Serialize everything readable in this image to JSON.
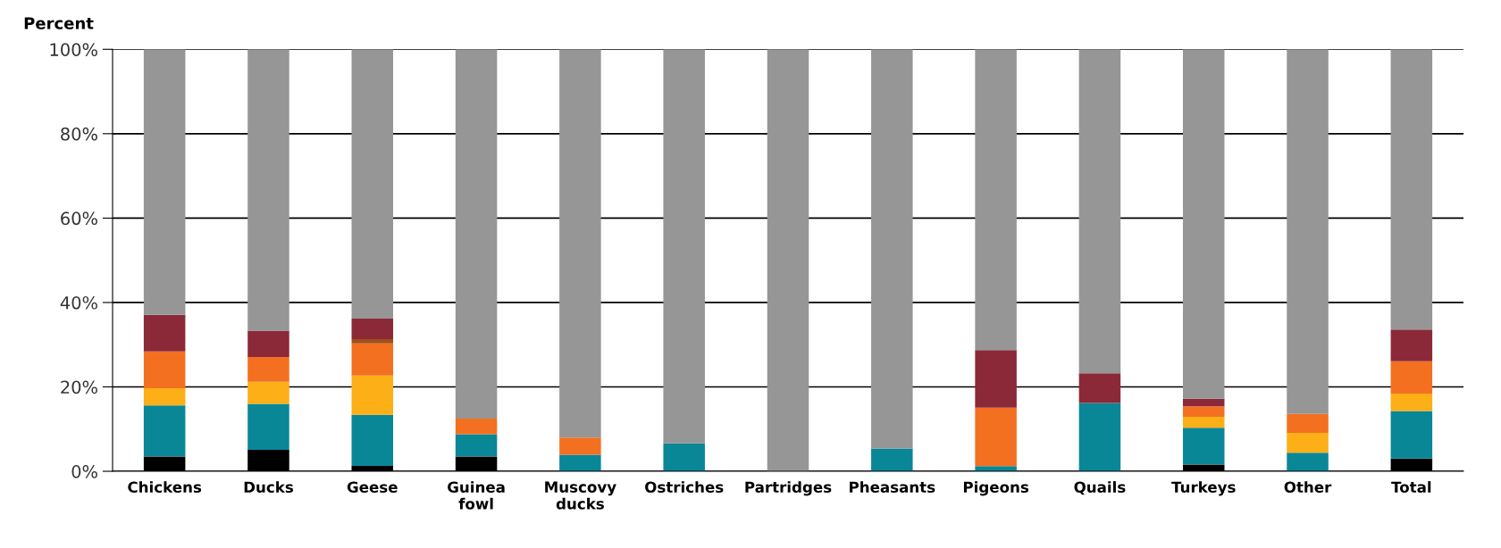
{
  "chart_data": {
    "type": "bar",
    "stacked": true,
    "ylabel": "Percent",
    "categories": [
      "Chickens",
      "Ducks",
      "Geese",
      "Guinea\nfowl",
      "Muscovy\nducks",
      "Ostriches",
      "Partridges",
      "Pheasants",
      "Pigeons",
      "Quails",
      "Turkeys",
      "Other",
      "Total"
    ],
    "series": [
      {
        "color": "#000000",
        "values": [
          3.5,
          5.1,
          1.3,
          3.5,
          0,
          0,
          0,
          0,
          0,
          0,
          1.6,
          0,
          3.0
        ]
      },
      {
        "color": "#0a8797",
        "values": [
          12.1,
          10.9,
          12.1,
          5.3,
          3.9,
          6.6,
          0,
          5.4,
          1.2,
          16.2,
          8.7,
          4.4,
          11.3
        ]
      },
      {
        "color": "#fcaf17",
        "values": [
          4.1,
          5.2,
          9.3,
          0,
          0,
          0,
          0,
          0,
          0,
          0,
          2.6,
          4.7,
          4.1
        ]
      },
      {
        "color": "#f37021",
        "values": [
          8.7,
          5.9,
          7.6,
          3.7,
          4.1,
          0,
          0,
          0,
          13.9,
          0,
          2.5,
          4.5,
          7.7
        ]
      },
      {
        "color": "#a0501a",
        "values": [
          0,
          0,
          1.0,
          0,
          0,
          0,
          0,
          0,
          0,
          0,
          0,
          0,
          0
        ]
      },
      {
        "color": "#8b2939",
        "values": [
          8.7,
          6.2,
          4.9,
          0,
          0,
          0,
          0,
          0,
          13.6,
          7.0,
          1.8,
          0,
          7.5
        ]
      },
      {
        "color": "#969696",
        "values": [
          62.9,
          66.7,
          63.8,
          87.5,
          92.0,
          93.4,
          100,
          94.6,
          71.3,
          76.8,
          82.8,
          86.4,
          66.4
        ]
      }
    ],
    "ylim": [
      0,
      100
    ],
    "yticks": [
      {
        "value": 0,
        "label": "0%"
      },
      {
        "value": 20,
        "label": "20%"
      },
      {
        "value": 40,
        "label": "40%"
      },
      {
        "value": 60,
        "label": "60%"
      },
      {
        "value": 80,
        "label": "80%"
      },
      {
        "value": 100,
        "label": "100%"
      }
    ],
    "grid": "y",
    "legend": false
  }
}
